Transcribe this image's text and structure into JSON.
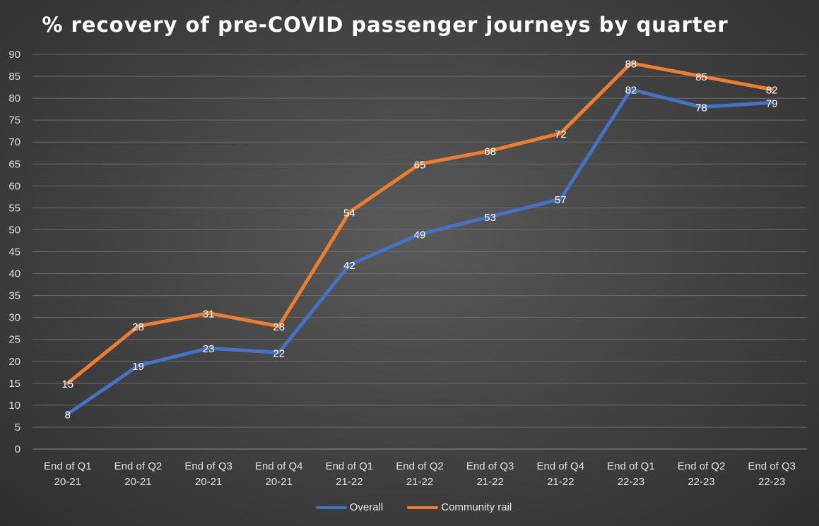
{
  "chart_data": {
    "type": "line",
    "title": "% recovery of pre-COVID passenger journeys by quarter",
    "categories": [
      [
        "End of Q1",
        "20-21"
      ],
      [
        "End of Q2",
        "20-21"
      ],
      [
        "End of Q3",
        "20-21"
      ],
      [
        "End of Q4",
        "20-21"
      ],
      [
        "End of Q1",
        "21-22"
      ],
      [
        "End of Q2",
        "21-22"
      ],
      [
        "End of Q3",
        "21-22"
      ],
      [
        "End of Q4",
        "21-22"
      ],
      [
        "End of Q1",
        "22-23"
      ],
      [
        "End of Q2",
        "22-23"
      ],
      [
        "End of Q3",
        "22-23"
      ]
    ],
    "series": [
      {
        "name": "Overall",
        "color": "#4472C4",
        "values": [
          8,
          19,
          23,
          22,
          42,
          49,
          53,
          57,
          82,
          78,
          79
        ]
      },
      {
        "name": "Community rail",
        "color": "#ED7D31",
        "values": [
          15,
          28,
          31,
          28,
          54,
          65,
          68,
          72,
          88,
          85,
          82
        ]
      }
    ],
    "ylim": [
      0,
      90
    ],
    "ytick_step": 5,
    "grid": true,
    "legend_position": "bottom",
    "data_labels": true
  }
}
